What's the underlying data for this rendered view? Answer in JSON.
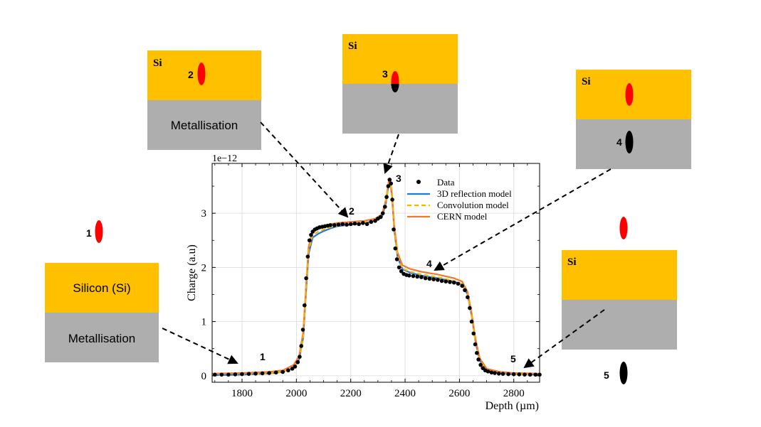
{
  "colors": {
    "silicon": "#FFC000",
    "metal": "#AEAEAE",
    "beam_red": "#FF0000",
    "beam_black": "#000000",
    "data": "#000000",
    "reflection": "#1F77E8",
    "convolution": "#F5B400",
    "cern": "#F07830"
  },
  "chart_data": {
    "type": "scatter",
    "title": "",
    "xlabel": "Depth (µm)",
    "ylabel": "Charge (a.u)",
    "offset_text": "1e−12",
    "xlim": [
      1690,
      2895
    ],
    "ylim": [
      -0.12,
      3.92
    ],
    "xticks": [
      1800,
      2000,
      2200,
      2400,
      2600,
      2800
    ],
    "yticks": [
      0,
      1,
      2,
      3
    ],
    "grid": true,
    "legend_position": "top-right",
    "series": [
      {
        "name": "Data",
        "kind": "scatter",
        "color": "#000000",
        "x": [
          1700,
          1725,
          1750,
          1775,
          1800,
          1825,
          1850,
          1875,
          1900,
          1925,
          1950,
          1970,
          1985,
          1995,
          2005,
          2012,
          2018,
          2024,
          2030,
          2036,
          2042,
          2048,
          2054,
          2060,
          2068,
          2076,
          2085,
          2095,
          2105,
          2115,
          2125,
          2140,
          2155,
          2170,
          2185,
          2200,
          2215,
          2230,
          2245,
          2260,
          2275,
          2290,
          2300,
          2310,
          2318,
          2326,
          2332,
          2338,
          2343,
          2348,
          2353,
          2358,
          2364,
          2370,
          2378,
          2386,
          2395,
          2405,
          2415,
          2430,
          2445,
          2460,
          2475,
          2490,
          2505,
          2520,
          2535,
          2550,
          2565,
          2580,
          2595,
          2610,
          2620,
          2630,
          2638,
          2645,
          2652,
          2658,
          2664,
          2670,
          2678,
          2686,
          2695,
          2705,
          2718,
          2730,
          2745,
          2760,
          2780,
          2800,
          2820,
          2840,
          2860,
          2880,
          2895
        ],
        "y": [
          0.02,
          0.02,
          0.02,
          0.025,
          0.03,
          0.035,
          0.04,
          0.045,
          0.05,
          0.06,
          0.07,
          0.1,
          0.13,
          0.17,
          0.25,
          0.35,
          0.55,
          0.85,
          1.3,
          1.8,
          2.2,
          2.5,
          2.6,
          2.66,
          2.7,
          2.72,
          2.74,
          2.75,
          2.76,
          2.77,
          2.78,
          2.78,
          2.79,
          2.8,
          2.79,
          2.8,
          2.81,
          2.8,
          2.82,
          2.8,
          2.84,
          2.86,
          2.9,
          2.93,
          3.0,
          3.12,
          3.3,
          3.5,
          3.62,
          3.55,
          3.25,
          2.7,
          2.35,
          2.15,
          2.0,
          1.93,
          1.88,
          1.86,
          1.85,
          1.84,
          1.83,
          1.82,
          1.8,
          1.79,
          1.78,
          1.77,
          1.75,
          1.74,
          1.73,
          1.72,
          1.7,
          1.66,
          1.58,
          1.45,
          1.25,
          1.0,
          0.78,
          0.58,
          0.42,
          0.3,
          0.2,
          0.14,
          0.1,
          0.08,
          0.06,
          0.05,
          0.04,
          0.035,
          0.03,
          0.028,
          0.025,
          0.022,
          0.02,
          0.02,
          0.02
        ]
      },
      {
        "name": "3D reflection model",
        "kind": "line",
        "color": "#1F77E8",
        "x": [
          1690,
          1800,
          1900,
          1950,
          1990,
          2010,
          2025,
          2035,
          2045,
          2060,
          2080,
          2100,
          2125,
          2150,
          2200,
          2250,
          2290,
          2315,
          2330,
          2340,
          2345,
          2352,
          2360,
          2372,
          2390,
          2420,
          2460,
          2520,
          2580,
          2610,
          2630,
          2645,
          2660,
          2675,
          2700,
          2750,
          2800,
          2895
        ],
        "y": [
          0.01,
          0.02,
          0.04,
          0.07,
          0.15,
          0.3,
          0.7,
          1.5,
          2.25,
          2.55,
          2.62,
          2.67,
          2.72,
          2.76,
          2.79,
          2.82,
          2.86,
          2.93,
          3.2,
          3.55,
          3.6,
          3.3,
          2.7,
          2.2,
          1.97,
          1.9,
          1.85,
          1.8,
          1.74,
          1.68,
          1.5,
          1.1,
          0.6,
          0.28,
          0.1,
          0.04,
          0.025,
          0.02
        ]
      },
      {
        "name": "Convolution model",
        "kind": "dashed",
        "color": "#F5B400",
        "x": [
          1690,
          1800,
          1900,
          1950,
          1990,
          2010,
          2025,
          2035,
          2045,
          2060,
          2080,
          2100,
          2125,
          2150,
          2200,
          2250,
          2290,
          2315,
          2330,
          2340,
          2345,
          2352,
          2360,
          2372,
          2390,
          2420,
          2460,
          2520,
          2580,
          2610,
          2630,
          2645,
          2660,
          2675,
          2700,
          2750,
          2800,
          2895
        ],
        "y": [
          0.01,
          0.02,
          0.04,
          0.07,
          0.15,
          0.3,
          0.72,
          1.55,
          2.3,
          2.6,
          2.66,
          2.7,
          2.74,
          2.77,
          2.8,
          2.83,
          2.87,
          2.95,
          3.22,
          3.57,
          3.62,
          3.3,
          2.72,
          2.22,
          1.98,
          1.92,
          1.87,
          1.82,
          1.75,
          1.69,
          1.5,
          1.1,
          0.6,
          0.28,
          0.1,
          0.04,
          0.025,
          0.02
        ]
      },
      {
        "name": "CERN model",
        "kind": "line",
        "color": "#F07830",
        "x": [
          1690,
          1800,
          1900,
          1950,
          1990,
          2010,
          2025,
          2035,
          2045,
          2060,
          2080,
          2100,
          2125,
          2150,
          2200,
          2250,
          2290,
          2315,
          2330,
          2340,
          2345,
          2352,
          2360,
          2372,
          2390,
          2420,
          2460,
          2520,
          2580,
          2610,
          2630,
          2645,
          2660,
          2675,
          2700,
          2750,
          2800,
          2895
        ],
        "y": [
          0.04,
          0.05,
          0.07,
          0.1,
          0.2,
          0.36,
          0.8,
          1.6,
          2.38,
          2.67,
          2.73,
          2.77,
          2.8,
          2.82,
          2.84,
          2.86,
          2.9,
          2.98,
          3.25,
          3.6,
          3.64,
          3.35,
          2.78,
          2.28,
          2.04,
          1.97,
          1.92,
          1.87,
          1.8,
          1.74,
          1.55,
          1.15,
          0.65,
          0.32,
          0.13,
          0.07,
          0.05,
          0.04
        ]
      }
    ],
    "annotations": [
      {
        "label": "1",
        "x": 1790,
        "y": 0.03
      },
      {
        "label": "2",
        "x": 2190,
        "y": 2.87
      },
      {
        "label": "3",
        "x": 2342,
        "y": 3.72
      },
      {
        "label": "4",
        "x": 2505,
        "y": 1.84
      },
      {
        "label": "5",
        "x": 2812,
        "y": 0.03
      }
    ]
  },
  "insets": {
    "box2": {
      "si_label": "Si",
      "metal_label": "Metallisation",
      "point_label": "2"
    },
    "box3": {
      "si_label": "Si",
      "point_label": "3"
    },
    "box4": {
      "si_label": "Si",
      "point_label": "4"
    },
    "box1": {
      "point_label": "1",
      "si_label": "Silicon (Si)",
      "metal_label": "Metallisation"
    },
    "box5": {
      "si_label": "Si",
      "point_label": "5"
    }
  }
}
